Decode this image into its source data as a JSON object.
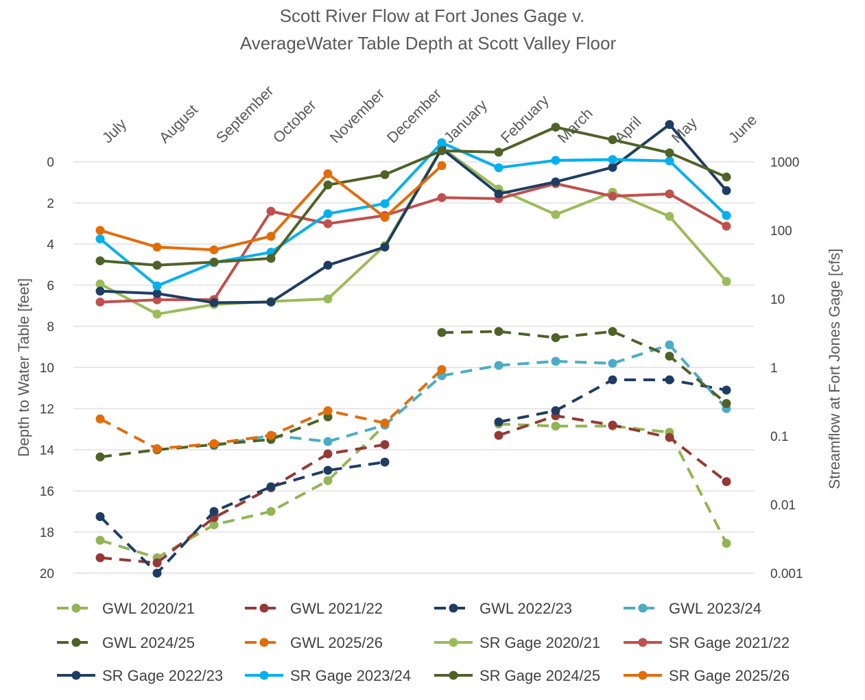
{
  "chart_data": {
    "type": "line",
    "title": [
      "Scott River Flow at Fort Jones Gage v.",
      "AverageWater Table Depth at Scott Valley Floor"
    ],
    "categories": [
      "July",
      "August",
      "September",
      "October",
      "November",
      "December",
      "January",
      "February",
      "March",
      "April",
      "May",
      "June"
    ],
    "ylabel": "Depth to Water Table [feet]",
    "y2label": "Streamflow at Fort Jones Gage [cfs]",
    "ylim": [
      20,
      0
    ],
    "yticks": [
      "0",
      "2",
      "4",
      "6",
      "8",
      "10",
      "12",
      "14",
      "16",
      "18",
      "20"
    ],
    "y2ticks": [
      "1000",
      "100",
      "10",
      "1",
      "0.1",
      "0.01",
      "0.001"
    ],
    "y2lim_log": [
      0.001,
      1000
    ],
    "grid": true,
    "legend_position": "bottom",
    "series": [
      {
        "name": "GWL 2020/21",
        "axis": "left",
        "dashed": true,
        "color": "#92b554",
        "values": [
          18.4,
          19.25,
          17.65,
          17.0,
          15.5,
          12.8,
          null,
          12.75,
          12.85,
          12.85,
          13.15,
          18.55
        ]
      },
      {
        "name": "GWL 2021/22",
        "axis": "left",
        "dashed": true,
        "color": "#963834",
        "values": [
          19.25,
          19.5,
          17.3,
          15.85,
          14.2,
          13.75,
          null,
          13.3,
          12.35,
          12.8,
          13.4,
          15.55
        ]
      },
      {
        "name": "GWL 2022/23",
        "axis": "left",
        "dashed": true,
        "color": "#1f3d63",
        "values": [
          17.25,
          20.0,
          17.0,
          15.8,
          15.0,
          14.6,
          null,
          12.65,
          12.1,
          10.6,
          10.6,
          11.1
        ]
      },
      {
        "name": "GWL 2023/24",
        "axis": "left",
        "dashed": true,
        "color": "#4bacc6",
        "values": [
          null,
          null,
          13.8,
          13.3,
          13.6,
          12.8,
          10.4,
          9.9,
          9.7,
          9.8,
          8.9,
          12.0
        ]
      },
      {
        "name": "GWL 2024/25",
        "axis": "left",
        "dashed": true,
        "color": "#4f6228",
        "values": [
          14.35,
          14.0,
          13.75,
          13.5,
          12.4,
          null,
          8.3,
          8.25,
          8.55,
          8.25,
          9.45,
          11.75
        ]
      },
      {
        "name": "GWL 2025/26",
        "axis": "left",
        "dashed": true,
        "color": "#e36c09",
        "values": [
          12.5,
          13.95,
          13.7,
          13.3,
          12.1,
          12.7,
          10.1,
          null,
          null,
          null,
          null,
          null
        ]
      },
      {
        "name": "SR Gage 2020/21",
        "axis": "right",
        "dashed": false,
        "color": "#9bbb59",
        "values": [
          16.5,
          6.0,
          8.3,
          9.2,
          10.0,
          60,
          1600,
          400,
          170,
          360,
          160,
          18.0
        ]
      },
      {
        "name": "SR Gage 2021/22",
        "axis": "right",
        "dashed": false,
        "color": "#c0504d",
        "values": [
          9.0,
          9.7,
          9.8,
          190,
          125,
          165,
          300,
          290,
          480,
          315,
          340,
          115
        ]
      },
      {
        "name": "SR Gage 2022/23",
        "axis": "right",
        "dashed": false,
        "color": "#1f3d63",
        "values": [
          13.0,
          12.0,
          8.8,
          9.0,
          31.0,
          57,
          1550,
          340,
          510,
          830,
          3500,
          380
        ]
      },
      {
        "name": "SR Gage 2023/24",
        "axis": "right",
        "dashed": false,
        "color": "#00b0f0",
        "values": [
          75,
          15.5,
          34.0,
          48,
          175,
          245,
          1900,
          820,
          1050,
          1080,
          1030,
          165
        ]
      },
      {
        "name": "SR Gage 2024/25",
        "axis": "right",
        "dashed": false,
        "color": "#4f6228",
        "values": [
          36,
          31,
          34.5,
          39,
          460,
          650,
          1450,
          1380,
          3200,
          2100,
          1350,
          600
        ]
      },
      {
        "name": "SR Gage 2025/26",
        "axis": "right",
        "dashed": false,
        "color": "#e36c09",
        "values": [
          100,
          57,
          52,
          82,
          670,
          155,
          880,
          null,
          null,
          null,
          null,
          null
        ]
      }
    ]
  }
}
